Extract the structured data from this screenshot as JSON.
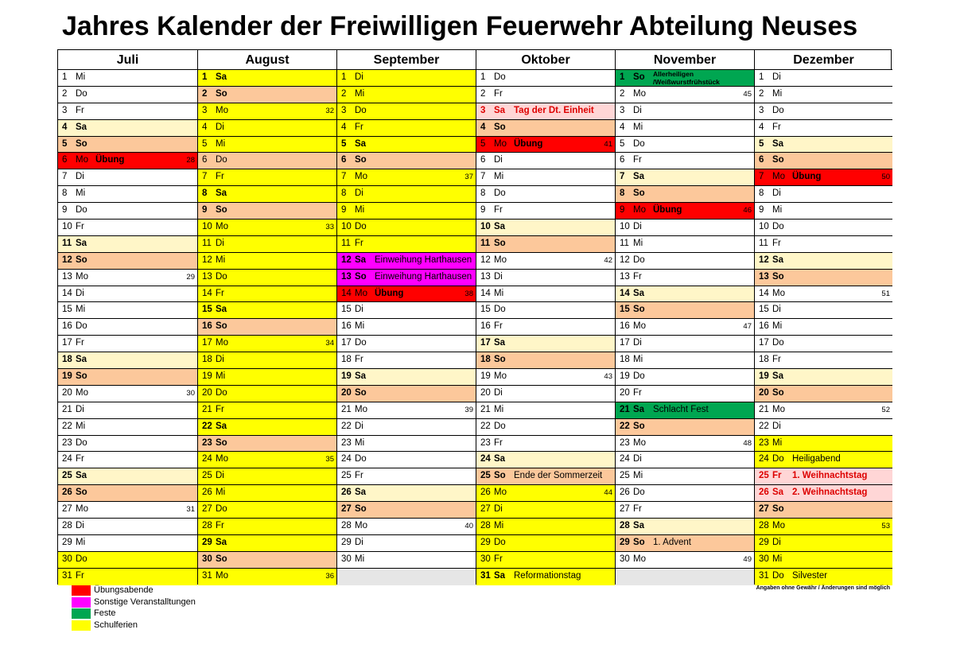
{
  "title": "Jahres Kalender der Freiwilligen Feuerwehr Abteilung Neuses",
  "colors": {
    "white": "#ffffff",
    "saturday": "#fff6c8",
    "sunday": "#fcc89b",
    "schulferien": "#ffff00",
    "uebungsabende": "#ff0000",
    "sonstige": "#ff00ff",
    "feste": "#00a651",
    "feiertag": "#ffd6d6",
    "empty": "#e6e6e6"
  },
  "months": [
    {
      "name": "Juli",
      "days": [
        {
          "d": "1",
          "w": "Mi",
          "c": "white"
        },
        {
          "d": "2",
          "w": "Do",
          "c": "white"
        },
        {
          "d": "3",
          "w": "Fr",
          "c": "white"
        },
        {
          "d": "4",
          "w": "Sa",
          "c": "sat",
          "b": true
        },
        {
          "d": "5",
          "w": "So",
          "c": "sun",
          "b": true
        },
        {
          "d": "6",
          "w": "Mo",
          "c": "red",
          "n": "Übung",
          "k": "28"
        },
        {
          "d": "7",
          "w": "Di",
          "c": "white"
        },
        {
          "d": "8",
          "w": "Mi",
          "c": "white"
        },
        {
          "d": "9",
          "w": "Do",
          "c": "white"
        },
        {
          "d": "10",
          "w": "Fr",
          "c": "white"
        },
        {
          "d": "11",
          "w": "Sa",
          "c": "sat",
          "b": true
        },
        {
          "d": "12",
          "w": "So",
          "c": "sun",
          "b": true
        },
        {
          "d": "13",
          "w": "Mo",
          "c": "white",
          "k": "29"
        },
        {
          "d": "14",
          "w": "Di",
          "c": "white"
        },
        {
          "d": "15",
          "w": "Mi",
          "c": "white"
        },
        {
          "d": "16",
          "w": "Do",
          "c": "white"
        },
        {
          "d": "17",
          "w": "Fr",
          "c": "white"
        },
        {
          "d": "18",
          "w": "Sa",
          "c": "sat",
          "b": true
        },
        {
          "d": "19",
          "w": "So",
          "c": "sun",
          "b": true
        },
        {
          "d": "20",
          "w": "Mo",
          "c": "white",
          "k": "30"
        },
        {
          "d": "21",
          "w": "Di",
          "c": "white"
        },
        {
          "d": "22",
          "w": "Mi",
          "c": "white"
        },
        {
          "d": "23",
          "w": "Do",
          "c": "white"
        },
        {
          "d": "24",
          "w": "Fr",
          "c": "white"
        },
        {
          "d": "25",
          "w": "Sa",
          "c": "sat",
          "b": true
        },
        {
          "d": "26",
          "w": "So",
          "c": "sun",
          "b": true
        },
        {
          "d": "27",
          "w": "Mo",
          "c": "white",
          "k": "31"
        },
        {
          "d": "28",
          "w": "Di",
          "c": "white"
        },
        {
          "d": "29",
          "w": "Mi",
          "c": "white"
        },
        {
          "d": "30",
          "w": "Do",
          "c": "yellow"
        },
        {
          "d": "31",
          "w": "Fr",
          "c": "yellow"
        }
      ]
    },
    {
      "name": "August",
      "days": [
        {
          "d": "1",
          "w": "Sa",
          "c": "yellow",
          "b": true
        },
        {
          "d": "2",
          "w": "So",
          "c": "sun",
          "b": true
        },
        {
          "d": "3",
          "w": "Mo",
          "c": "yellow",
          "k": "32"
        },
        {
          "d": "4",
          "w": "Di",
          "c": "yellow"
        },
        {
          "d": "5",
          "w": "Mi",
          "c": "yellow"
        },
        {
          "d": "6",
          "w": "Do",
          "c": "sun"
        },
        {
          "d": "7",
          "w": "Fr",
          "c": "yellow"
        },
        {
          "d": "8",
          "w": "Sa",
          "c": "yellow",
          "b": true
        },
        {
          "d": "9",
          "w": "So",
          "c": "sun",
          "b": true
        },
        {
          "d": "10",
          "w": "Mo",
          "c": "yellow",
          "k": "33"
        },
        {
          "d": "11",
          "w": "Di",
          "c": "yellow"
        },
        {
          "d": "12",
          "w": "Mi",
          "c": "yellow"
        },
        {
          "d": "13",
          "w": "Do",
          "c": "yellow"
        },
        {
          "d": "14",
          "w": "Fr",
          "c": "yellow"
        },
        {
          "d": "15",
          "w": "Sa",
          "c": "yellow",
          "b": true
        },
        {
          "d": "16",
          "w": "So",
          "c": "sun",
          "b": true
        },
        {
          "d": "17",
          "w": "Mo",
          "c": "yellow",
          "k": "34"
        },
        {
          "d": "18",
          "w": "Di",
          "c": "yellow"
        },
        {
          "d": "19",
          "w": "Mi",
          "c": "yellow"
        },
        {
          "d": "20",
          "w": "Do",
          "c": "yellow"
        },
        {
          "d": "21",
          "w": "Fr",
          "c": "yellow"
        },
        {
          "d": "22",
          "w": "Sa",
          "c": "yellow",
          "b": true
        },
        {
          "d": "23",
          "w": "So",
          "c": "sun",
          "b": true
        },
        {
          "d": "24",
          "w": "Mo",
          "c": "yellow",
          "k": "35"
        },
        {
          "d": "25",
          "w": "Di",
          "c": "yellow"
        },
        {
          "d": "26",
          "w": "Mi",
          "c": "yellow"
        },
        {
          "d": "27",
          "w": "Do",
          "c": "yellow"
        },
        {
          "d": "28",
          "w": "Fr",
          "c": "yellow"
        },
        {
          "d": "29",
          "w": "Sa",
          "c": "yellow",
          "b": true
        },
        {
          "d": "30",
          "w": "So",
          "c": "sun",
          "b": true
        },
        {
          "d": "31",
          "w": "Mo",
          "c": "yellow",
          "k": "36"
        }
      ]
    },
    {
      "name": "September",
      "days": [
        {
          "d": "1",
          "w": "Di",
          "c": "yellow"
        },
        {
          "d": "2",
          "w": "Mi",
          "c": "yellow"
        },
        {
          "d": "3",
          "w": "Do",
          "c": "yellow"
        },
        {
          "d": "4",
          "w": "Fr",
          "c": "yellow"
        },
        {
          "d": "5",
          "w": "Sa",
          "c": "yellow",
          "b": true
        },
        {
          "d": "6",
          "w": "So",
          "c": "sun",
          "b": true
        },
        {
          "d": "7",
          "w": "Mo",
          "c": "yellow",
          "k": "37"
        },
        {
          "d": "8",
          "w": "Di",
          "c": "yellow"
        },
        {
          "d": "9",
          "w": "Mi",
          "c": "yellow"
        },
        {
          "d": "10",
          "w": "Do",
          "c": "yellow"
        },
        {
          "d": "11",
          "w": "Fr",
          "c": "yellow"
        },
        {
          "d": "12",
          "w": "Sa",
          "c": "magenta",
          "b": true,
          "n": "Einweihung Harthausen"
        },
        {
          "d": "13",
          "w": "So",
          "c": "magenta",
          "b": true,
          "n": "Einweihung Harthausen"
        },
        {
          "d": "14",
          "w": "Mo",
          "c": "red",
          "n": "Übung",
          "k": "38"
        },
        {
          "d": "15",
          "w": "Di",
          "c": "white"
        },
        {
          "d": "16",
          "w": "Mi",
          "c": "white"
        },
        {
          "d": "17",
          "w": "Do",
          "c": "white"
        },
        {
          "d": "18",
          "w": "Fr",
          "c": "white"
        },
        {
          "d": "19",
          "w": "Sa",
          "c": "sat",
          "b": true
        },
        {
          "d": "20",
          "w": "So",
          "c": "sun",
          "b": true
        },
        {
          "d": "21",
          "w": "Mo",
          "c": "white",
          "k": "39"
        },
        {
          "d": "22",
          "w": "Di",
          "c": "white"
        },
        {
          "d": "23",
          "w": "Mi",
          "c": "white"
        },
        {
          "d": "24",
          "w": "Do",
          "c": "white"
        },
        {
          "d": "25",
          "w": "Fr",
          "c": "white"
        },
        {
          "d": "26",
          "w": "Sa",
          "c": "sat",
          "b": true
        },
        {
          "d": "27",
          "w": "So",
          "c": "sun",
          "b": true
        },
        {
          "d": "28",
          "w": "Mo",
          "c": "white",
          "k": "40"
        },
        {
          "d": "29",
          "w": "Di",
          "c": "white"
        },
        {
          "d": "30",
          "w": "Mi",
          "c": "white"
        },
        {
          "d": "",
          "w": "",
          "c": "gray"
        }
      ]
    },
    {
      "name": "Oktober",
      "days": [
        {
          "d": "1",
          "w": "Do",
          "c": "white"
        },
        {
          "d": "2",
          "w": "Fr",
          "c": "white"
        },
        {
          "d": "3",
          "w": "Sa",
          "c": "pink",
          "b": true,
          "red": true,
          "n": "Tag der Dt. Einheit"
        },
        {
          "d": "4",
          "w": "So",
          "c": "sun",
          "b": true
        },
        {
          "d": "5",
          "w": "Mo",
          "c": "red",
          "n": "Übung",
          "k": "41"
        },
        {
          "d": "6",
          "w": "Di",
          "c": "white"
        },
        {
          "d": "7",
          "w": "Mi",
          "c": "white"
        },
        {
          "d": "8",
          "w": "Do",
          "c": "white"
        },
        {
          "d": "9",
          "w": "Fr",
          "c": "white"
        },
        {
          "d": "10",
          "w": "Sa",
          "c": "sat",
          "b": true
        },
        {
          "d": "11",
          "w": "So",
          "c": "sun",
          "b": true
        },
        {
          "d": "12",
          "w": "Mo",
          "c": "white",
          "k": "42"
        },
        {
          "d": "13",
          "w": "Di",
          "c": "white"
        },
        {
          "d": "14",
          "w": "Mi",
          "c": "white"
        },
        {
          "d": "15",
          "w": "Do",
          "c": "white"
        },
        {
          "d": "16",
          "w": "Fr",
          "c": "white"
        },
        {
          "d": "17",
          "w": "Sa",
          "c": "sat",
          "b": true
        },
        {
          "d": "18",
          "w": "So",
          "c": "sun",
          "b": true
        },
        {
          "d": "19",
          "w": "Mo",
          "c": "white",
          "k": "43"
        },
        {
          "d": "20",
          "w": "Di",
          "c": "white"
        },
        {
          "d": "21",
          "w": "Mi",
          "c": "white"
        },
        {
          "d": "22",
          "w": "Do",
          "c": "white"
        },
        {
          "d": "23",
          "w": "Fr",
          "c": "white"
        },
        {
          "d": "24",
          "w": "Sa",
          "c": "sat",
          "b": true
        },
        {
          "d": "25",
          "w": "So",
          "c": "sun",
          "b": true,
          "n": "Ende der Sommerzeit"
        },
        {
          "d": "26",
          "w": "Mo",
          "c": "yellow",
          "k": "44"
        },
        {
          "d": "27",
          "w": "Di",
          "c": "yellow"
        },
        {
          "d": "28",
          "w": "Mi",
          "c": "yellow"
        },
        {
          "d": "29",
          "w": "Do",
          "c": "yellow"
        },
        {
          "d": "30",
          "w": "Fr",
          "c": "yellow"
        },
        {
          "d": "31",
          "w": "Sa",
          "c": "yellow",
          "b": true,
          "n": "Reformationstag"
        }
      ]
    },
    {
      "name": "November",
      "days": [
        {
          "d": "1",
          "w": "So",
          "c": "green",
          "b": true,
          "n": "Allerheiligen /Weißwurstfrühstück",
          "sm": true
        },
        {
          "d": "2",
          "w": "Mo",
          "c": "white",
          "k": "45"
        },
        {
          "d": "3",
          "w": "Di",
          "c": "white"
        },
        {
          "d": "4",
          "w": "Mi",
          "c": "white"
        },
        {
          "d": "5",
          "w": "Do",
          "c": "white"
        },
        {
          "d": "6",
          "w": "Fr",
          "c": "white"
        },
        {
          "d": "7",
          "w": "Sa",
          "c": "sat",
          "b": true
        },
        {
          "d": "8",
          "w": "So",
          "c": "sun",
          "b": true
        },
        {
          "d": "9",
          "w": "Mo",
          "c": "red",
          "n": "Übung",
          "k": "46"
        },
        {
          "d": "10",
          "w": "Di",
          "c": "white"
        },
        {
          "d": "11",
          "w": "Mi",
          "c": "white"
        },
        {
          "d": "12",
          "w": "Do",
          "c": "white"
        },
        {
          "d": "13",
          "w": "Fr",
          "c": "white"
        },
        {
          "d": "14",
          "w": "Sa",
          "c": "sat",
          "b": true
        },
        {
          "d": "15",
          "w": "So",
          "c": "sun",
          "b": true
        },
        {
          "d": "16",
          "w": "Mo",
          "c": "white",
          "k": "47"
        },
        {
          "d": "17",
          "w": "Di",
          "c": "white"
        },
        {
          "d": "18",
          "w": "Mi",
          "c": "white"
        },
        {
          "d": "19",
          "w": "Do",
          "c": "white"
        },
        {
          "d": "20",
          "w": "Fr",
          "c": "white"
        },
        {
          "d": "21",
          "w": "Sa",
          "c": "green",
          "b": true,
          "n": "Schlacht Fest"
        },
        {
          "d": "22",
          "w": "So",
          "c": "sun",
          "b": true
        },
        {
          "d": "23",
          "w": "Mo",
          "c": "white",
          "k": "48"
        },
        {
          "d": "24",
          "w": "Di",
          "c": "white"
        },
        {
          "d": "25",
          "w": "Mi",
          "c": "white"
        },
        {
          "d": "26",
          "w": "Do",
          "c": "white"
        },
        {
          "d": "27",
          "w": "Fr",
          "c": "white"
        },
        {
          "d": "28",
          "w": "Sa",
          "c": "sat",
          "b": true
        },
        {
          "d": "29",
          "w": "So",
          "c": "sun",
          "b": true,
          "n": "1. Advent"
        },
        {
          "d": "30",
          "w": "Mo",
          "c": "white",
          "k": "49"
        },
        {
          "d": "",
          "w": "",
          "c": "gray"
        }
      ]
    },
    {
      "name": "Dezember",
      "days": [
        {
          "d": "1",
          "w": "Di",
          "c": "white"
        },
        {
          "d": "2",
          "w": "Mi",
          "c": "white"
        },
        {
          "d": "3",
          "w": "Do",
          "c": "white"
        },
        {
          "d": "4",
          "w": "Fr",
          "c": "white"
        },
        {
          "d": "5",
          "w": "Sa",
          "c": "sat",
          "b": true
        },
        {
          "d": "6",
          "w": "So",
          "c": "sun",
          "b": true
        },
        {
          "d": "7",
          "w": "Mo",
          "c": "red",
          "n": "Übung",
          "k": "50"
        },
        {
          "d": "8",
          "w": "Di",
          "c": "white"
        },
        {
          "d": "9",
          "w": "Mi",
          "c": "white"
        },
        {
          "d": "10",
          "w": "Do",
          "c": "white"
        },
        {
          "d": "11",
          "w": "Fr",
          "c": "white"
        },
        {
          "d": "12",
          "w": "Sa",
          "c": "sat",
          "b": true
        },
        {
          "d": "13",
          "w": "So",
          "c": "sun",
          "b": true
        },
        {
          "d": "14",
          "w": "Mo",
          "c": "white",
          "k": "51"
        },
        {
          "d": "15",
          "w": "Di",
          "c": "white"
        },
        {
          "d": "16",
          "w": "Mi",
          "c": "white"
        },
        {
          "d": "17",
          "w": "Do",
          "c": "white"
        },
        {
          "d": "18",
          "w": "Fr",
          "c": "white"
        },
        {
          "d": "19",
          "w": "Sa",
          "c": "sat",
          "b": true
        },
        {
          "d": "20",
          "w": "So",
          "c": "sun",
          "b": true
        },
        {
          "d": "21",
          "w": "Mo",
          "c": "white",
          "k": "52"
        },
        {
          "d": "22",
          "w": "Di",
          "c": "white"
        },
        {
          "d": "23",
          "w": "Mi",
          "c": "yellow"
        },
        {
          "d": "24",
          "w": "Do",
          "c": "yellow",
          "n": "Heiligabend"
        },
        {
          "d": "25",
          "w": "Fr",
          "c": "pink",
          "b": true,
          "red": true,
          "n": "1. Weihnachtstag"
        },
        {
          "d": "26",
          "w": "Sa",
          "c": "pink",
          "b": true,
          "red": true,
          "n": "2. Weihnachtstag"
        },
        {
          "d": "27",
          "w": "So",
          "c": "sun",
          "b": true
        },
        {
          "d": "28",
          "w": "Mo",
          "c": "yellow",
          "k": "53"
        },
        {
          "d": "29",
          "w": "Di",
          "c": "yellow"
        },
        {
          "d": "30",
          "w": "Mi",
          "c": "yellow"
        },
        {
          "d": "31",
          "w": "Do",
          "c": "yellow",
          "n": "Silvester"
        }
      ]
    }
  ],
  "legend": [
    {
      "label": "Übungsabende",
      "c": "red"
    },
    {
      "label": "Sonstige Veranstalltungen",
      "c": "magenta"
    },
    {
      "label": "Feste",
      "c": "green"
    },
    {
      "label": "Schulferien",
      "c": "yellow"
    }
  ],
  "disclaimer": "Angaben ohne Gewähr / Änderungen sind möglich"
}
